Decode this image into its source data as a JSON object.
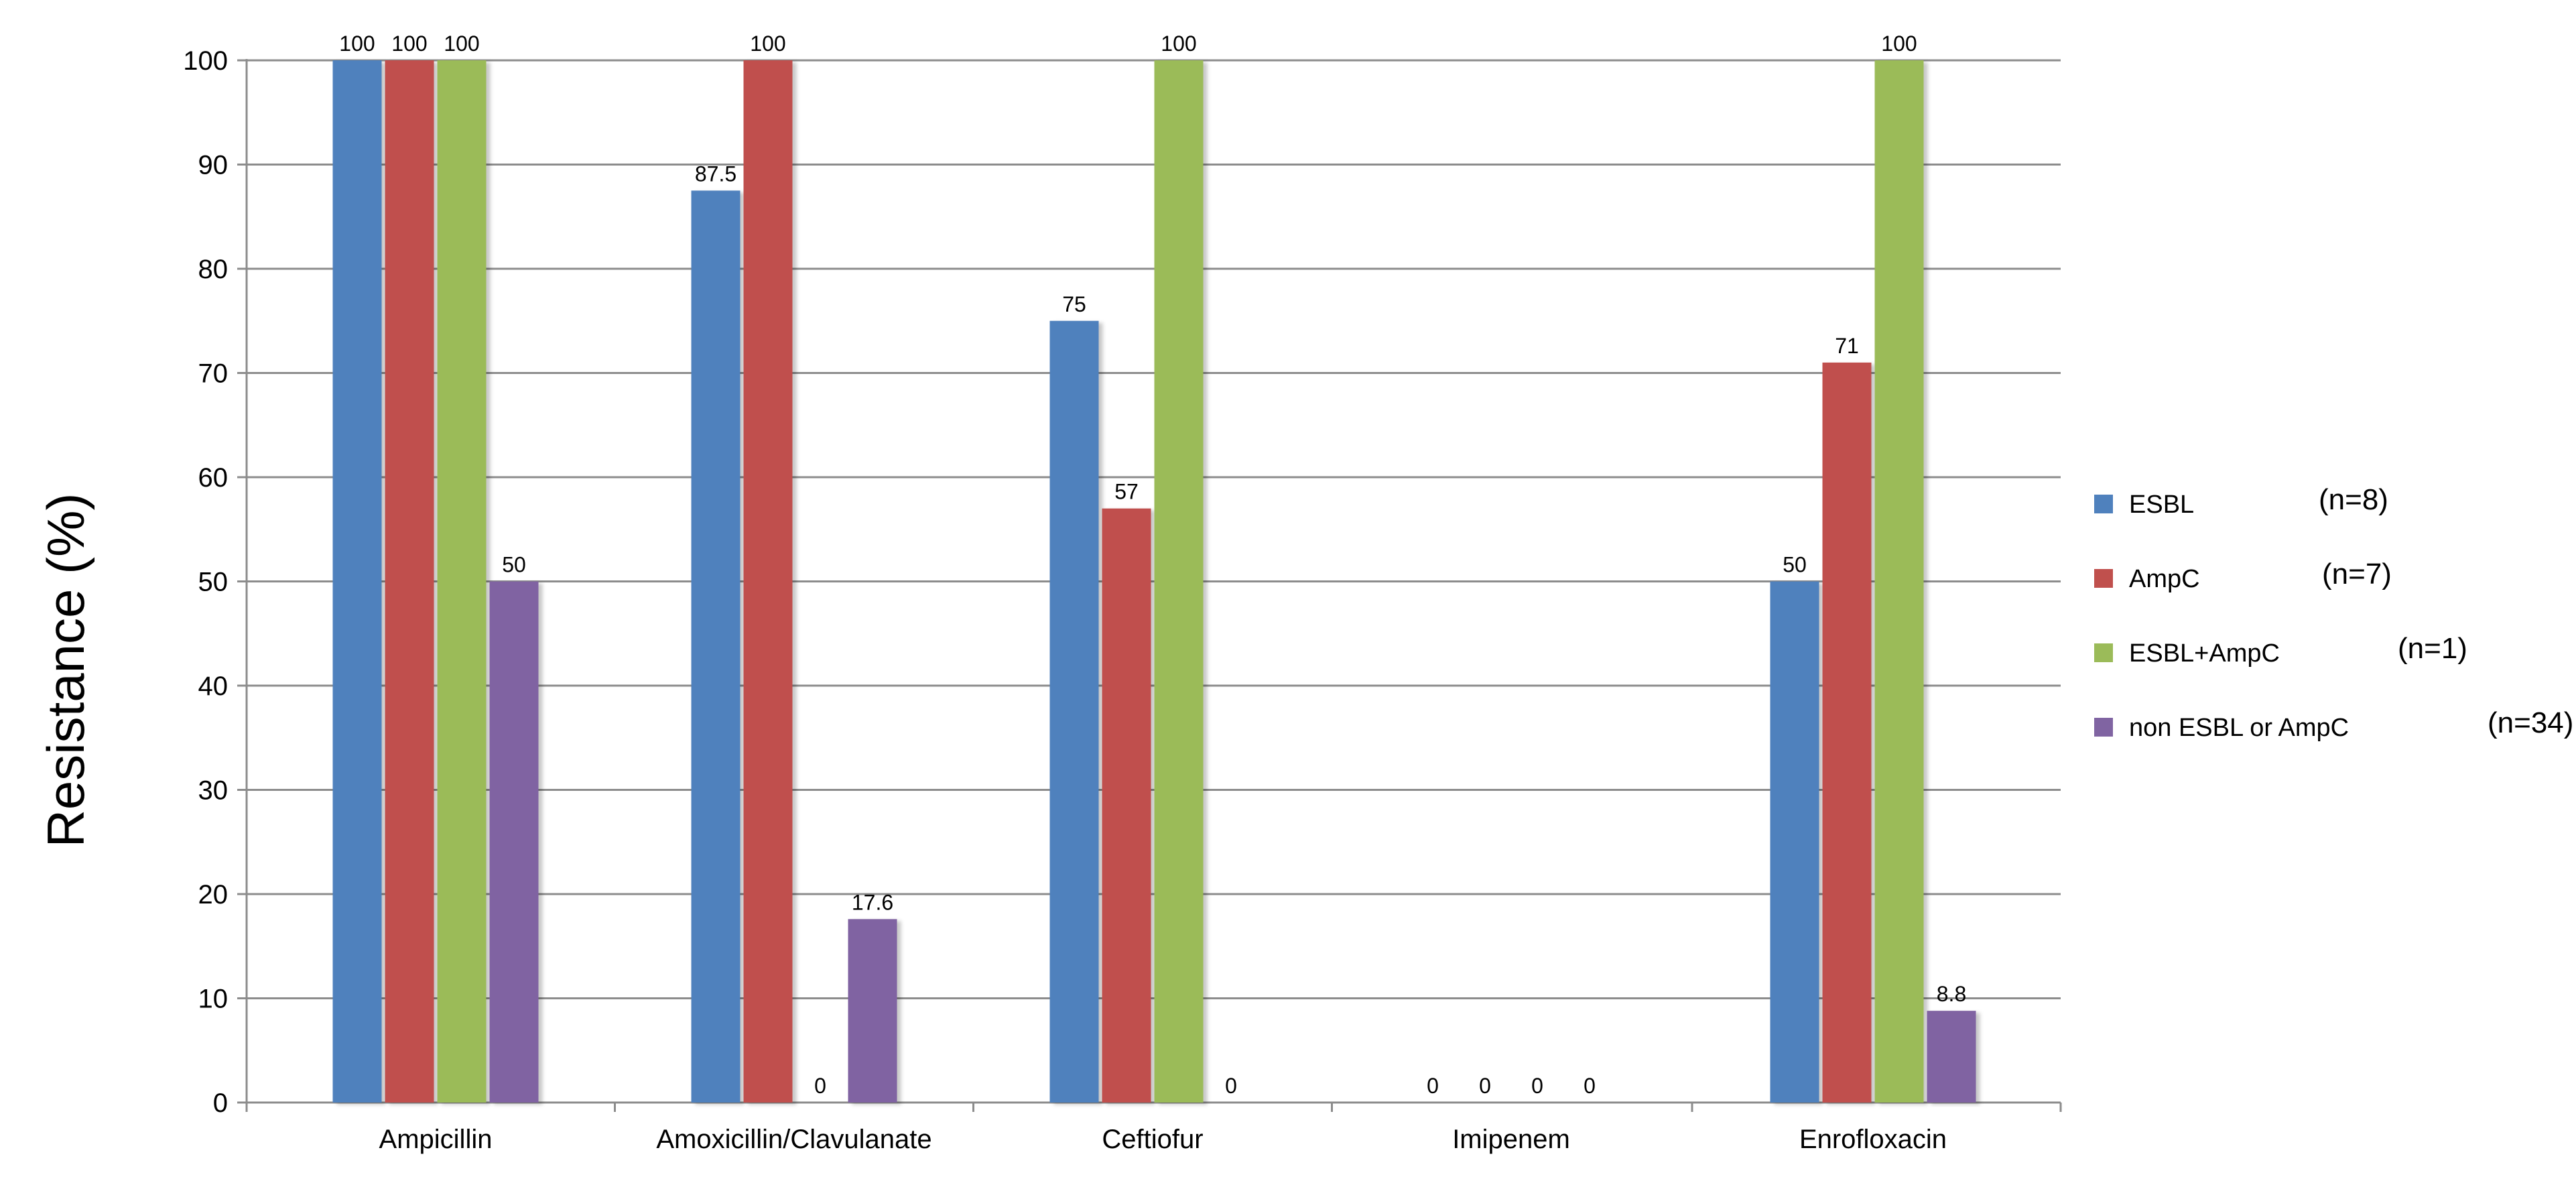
{
  "chart_data": {
    "type": "bar",
    "categories": [
      "Ampicillin",
      "Amoxicillin/Clavulanate",
      "Ceftiofur",
      "Imipenem",
      "Enrofloxacin"
    ],
    "series": [
      {
        "name": "ESBL",
        "n_label": "(n=8)",
        "color": "#4f81bd",
        "values": [
          100,
          87.5,
          75,
          0,
          50
        ],
        "labels": [
          "100",
          "87.5",
          "75",
          "0",
          "50"
        ]
      },
      {
        "name": "AmpC",
        "n_label": "(n=7)",
        "color": "#c0504d",
        "values": [
          100,
          100,
          57,
          0,
          71
        ],
        "labels": [
          "100",
          "100",
          "57",
          "0",
          "71"
        ]
      },
      {
        "name": "ESBL+AmpC",
        "n_label": "(n=1)",
        "color": "#9bbb59",
        "values": [
          100,
          0,
          100,
          0,
          100
        ],
        "labels": [
          "100",
          "0",
          "100",
          "0",
          "100"
        ]
      },
      {
        "name": "non ESBL or AmpC",
        "n_label": "(n=34)",
        "color": "#8064a2",
        "values": [
          50,
          17.6,
          0,
          0,
          8.8
        ],
        "labels": [
          "50",
          "17.6",
          "0",
          "0",
          "8.8"
        ]
      }
    ],
    "title": "",
    "xlabel": "",
    "ylabel": "Resistance (%)",
    "ylim": [
      0,
      100
    ],
    "yticks": [
      0,
      10,
      20,
      30,
      40,
      50,
      60,
      70,
      80,
      90,
      100
    ],
    "grid": true,
    "legend_position": "right"
  }
}
